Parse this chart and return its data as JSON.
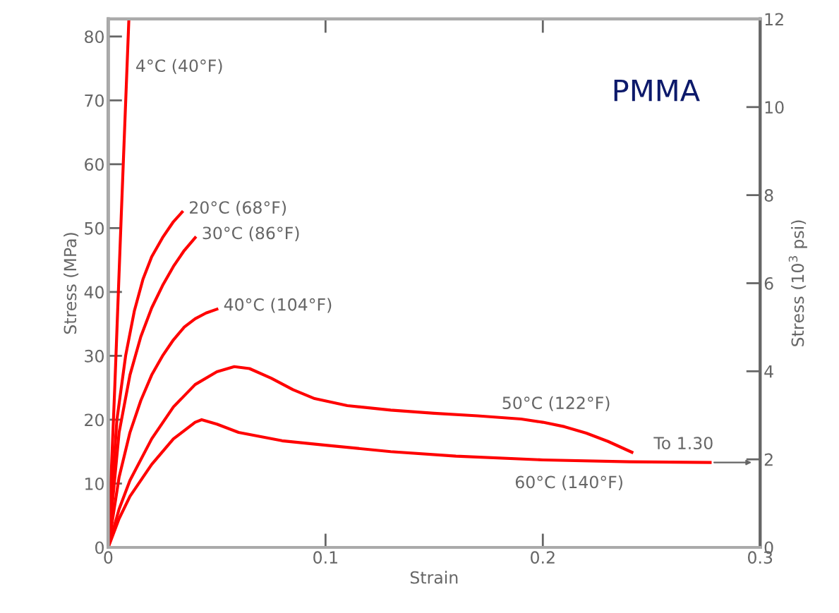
{
  "chart_data": {
    "type": "line",
    "title": "PMMA",
    "xlabel": "Strain",
    "ylabel": "Stress (MPa)",
    "y2label": "Stress (10$^{3}$ psi)",
    "xlim": [
      0,
      0.3
    ],
    "xticks": [
      0,
      0.1,
      0.2,
      0.3
    ],
    "ylim": [
      0,
      82.74
    ],
    "yticks": [
      0,
      10,
      20,
      30,
      40,
      50,
      60,
      70,
      80
    ],
    "y2lim": [
      0,
      12
    ],
    "y2ticks": [
      0,
      2,
      4,
      6,
      8,
      10,
      12
    ],
    "grid": false,
    "marker": "none",
    "line_style": "solid",
    "series": [
      {
        "name": "4°C (40°F)",
        "color": "#ff0000",
        "x": [
          0,
          0.003,
          0.006,
          0.0095
        ],
        "values": [
          0,
          25,
          52,
          82.7
        ]
      },
      {
        "name": "20°C (68°F)",
        "color": "#ff0000",
        "x": [
          0,
          0.004,
          0.008,
          0.012,
          0.016,
          0.02,
          0.025,
          0.03,
          0.034
        ],
        "values": [
          0,
          20,
          30,
          37,
          42,
          45.5,
          48.5,
          51,
          52.5
        ]
      },
      {
        "name": "30°C (86°F)",
        "color": "#ff0000",
        "x": [
          0,
          0.005,
          0.01,
          0.015,
          0.02,
          0.025,
          0.03,
          0.035,
          0.04
        ],
        "values": [
          0,
          18,
          27,
          33,
          37.5,
          41,
          44,
          46.5,
          48.5
        ]
      },
      {
        "name": "40°C (104°F)",
        "color": "#ff0000",
        "x": [
          0,
          0.005,
          0.01,
          0.015,
          0.02,
          0.025,
          0.03,
          0.035,
          0.04,
          0.045,
          0.05
        ],
        "values": [
          0,
          11,
          18,
          23,
          27,
          30,
          32.5,
          34.5,
          35.8,
          36.7,
          37.3
        ]
      },
      {
        "name": "50°C (122°F)",
        "color": "#ff0000",
        "x": [
          0,
          0.005,
          0.01,
          0.02,
          0.03,
          0.04,
          0.05,
          0.058,
          0.065,
          0.075,
          0.085,
          0.095,
          0.11,
          0.13,
          0.15,
          0.17,
          0.19,
          0.2,
          0.21,
          0.22,
          0.23,
          0.241
        ],
        "values": [
          0,
          6,
          10.5,
          17,
          22,
          25.5,
          27.5,
          28.3,
          28,
          26.5,
          24.7,
          23.3,
          22.2,
          21.5,
          21,
          20.6,
          20.1,
          19.6,
          18.9,
          17.9,
          16.6,
          14.9
        ]
      },
      {
        "name": "60°C (140°F)",
        "color": "#ff0000",
        "x": [
          0,
          0.005,
          0.01,
          0.02,
          0.03,
          0.04,
          0.043,
          0.05,
          0.06,
          0.08,
          0.1,
          0.13,
          0.16,
          0.2,
          0.24,
          0.277
        ],
        "values": [
          0,
          4.5,
          8,
          13,
          17,
          19.6,
          20,
          19.3,
          18,
          16.7,
          16,
          15,
          14.3,
          13.7,
          13.4,
          13.3
        ]
      }
    ],
    "annotations": [
      {
        "text": "To 1.30",
        "x": 0.277,
        "y": 13.3
      }
    ]
  }
}
